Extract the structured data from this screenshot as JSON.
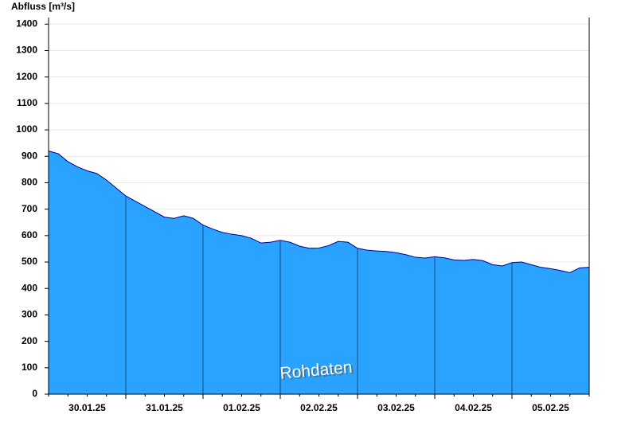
{
  "chart_data": {
    "type": "area",
    "title": "Abfluss [m³/s]",
    "annotation": "Rohdaten",
    "categories": [
      null,
      null,
      null,
      null,
      "30.01.25",
      null,
      null,
      null,
      null,
      null,
      null,
      null,
      "31.01.25",
      null,
      null,
      null,
      null,
      null,
      null,
      null,
      "01.02.25",
      null,
      null,
      null,
      null,
      null,
      null,
      null,
      "02.02.25",
      null,
      null,
      null,
      null,
      null,
      null,
      null,
      "03.02.25",
      null,
      null,
      null,
      null,
      null,
      null,
      null,
      "04.02.25",
      null,
      null,
      null,
      null,
      null,
      null,
      null,
      "05.02.25",
      null,
      null,
      null,
      null
    ],
    "values": [
      920,
      910,
      880,
      860,
      845,
      835,
      810,
      780,
      750,
      730,
      710,
      690,
      670,
      665,
      675,
      665,
      640,
      625,
      612,
      605,
      600,
      590,
      572,
      575,
      582,
      575,
      560,
      552,
      553,
      562,
      578,
      575,
      552,
      545,
      542,
      540,
      535,
      528,
      518,
      515,
      520,
      516,
      508,
      506,
      510,
      505,
      490,
      485,
      498,
      500,
      490,
      480,
      475,
      468,
      460,
      478,
      480
    ],
    "color": "#29a3ff",
    "line_color": "#00008b",
    "ylim": [
      0,
      1425
    ],
    "yticks": [
      0,
      100,
      200,
      300,
      400,
      500,
      600,
      700,
      800,
      900,
      1000,
      1100,
      1200,
      1300,
      1400
    ],
    "grid": true
  }
}
